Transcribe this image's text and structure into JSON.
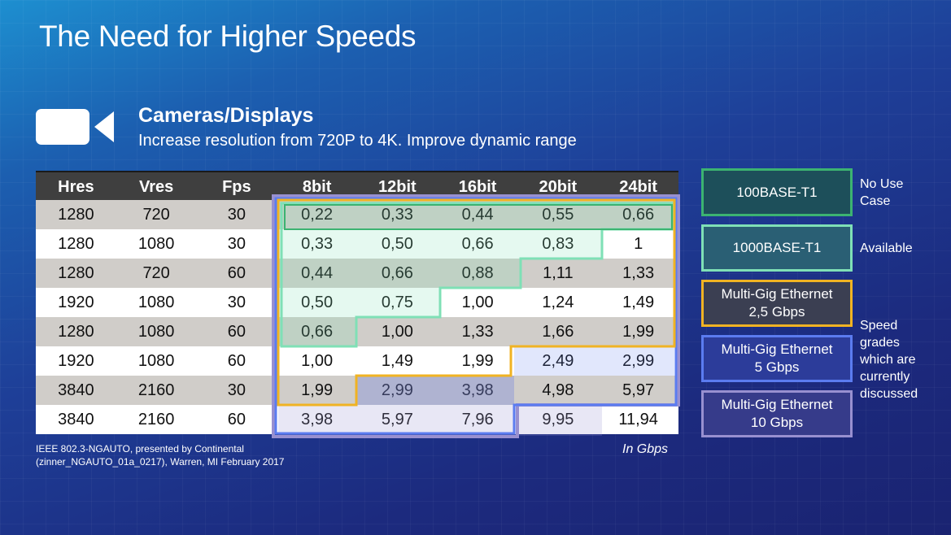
{
  "slide": {
    "title": "The Need for Higher Speeds",
    "heading": "Cameras/Displays",
    "subheading": "Increase resolution from 720P to 4K. Improve dynamic range",
    "camera_icon": "video-camera-icon"
  },
  "table": {
    "headers": [
      "Hres",
      "Vres",
      "Fps",
      "8bit",
      "12bit",
      "16bit",
      "20bit",
      "24bit"
    ],
    "rows": [
      [
        "1280",
        "720",
        "30",
        "0,22",
        "0,33",
        "0,44",
        "0,55",
        "0,66"
      ],
      [
        "1280",
        "1080",
        "30",
        "0,33",
        "0,50",
        "0,66",
        "0,83",
        "1"
      ],
      [
        "1280",
        "720",
        "60",
        "0,44",
        "0,66",
        "0,88",
        "1,11",
        "1,33"
      ],
      [
        "1920",
        "1080",
        "30",
        "0,50",
        "0,75",
        "1,00",
        "1,24",
        "1,49"
      ],
      [
        "1280",
        "1080",
        "60",
        "0,66",
        "1,00",
        "1,33",
        "1,66",
        "1,99"
      ],
      [
        "1920",
        "1080",
        "60",
        "1,00",
        "1,49",
        "1,99",
        "2,49",
        "2,99"
      ],
      [
        "3840",
        "2160",
        "30",
        "1,99",
        "2,99",
        "3,98",
        "4,98",
        "5,97"
      ],
      [
        "3840",
        "2160",
        "60",
        "3,98",
        "5,97",
        "7,96",
        "9,95",
        "11,94"
      ]
    ]
  },
  "legend": {
    "items": [
      {
        "label_line1": "100BASE-T1",
        "label_line2": "",
        "border": "#3cb371",
        "fill": "#1d4f5a"
      },
      {
        "label_line1": "1000BASE-T1",
        "label_line2": "",
        "border": "#7fe0b6",
        "fill": "#2a5f74"
      },
      {
        "label_line1": "Multi-Gig Ethernet",
        "label_line2": "2,5 Gbps",
        "border": "#f0b323",
        "fill": "#3b3f52"
      },
      {
        "label_line1": "Multi-Gig Ethernet",
        "label_line2": "5 Gbps",
        "border": "#5b7cf0",
        "fill": "#2c3c9a"
      },
      {
        "label_line1": "Multi-Gig Ethernet",
        "label_line2": "10 Gbps",
        "border": "#9890d0",
        "fill": "#363b8a"
      }
    ],
    "notes": {
      "no_use_line1": "No Use",
      "no_use_line2": "Case",
      "available": "Available",
      "speed_line1": "Speed",
      "speed_line2": "grades",
      "speed_line3": "which are",
      "speed_line4": "currently",
      "speed_line5": "discussed"
    }
  },
  "footer": {
    "source_line1": "IEEE 802.3-NGAUTO, presented by Continental",
    "source_line2": "(zinner_NGAUTO_01a_0217), Warren, MI February 2017",
    "unit": "In Gbps"
  },
  "colors": {
    "green": "#3cb371",
    "light_green": "#7fe0b6",
    "orange": "#f0b323",
    "blue": "#5b7cf0",
    "purple": "#9890d0"
  }
}
